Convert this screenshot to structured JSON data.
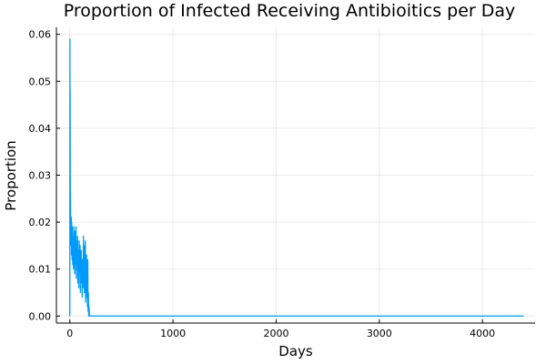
{
  "chart_data": {
    "type": "line",
    "title": "Proportion of Infected Receiving Antibioitics per Day",
    "xlabel": "Days",
    "ylabel": "Proportion",
    "xlim": [
      -130,
      4510
    ],
    "ylim": [
      -0.0015,
      0.0615
    ],
    "xticks": [
      0,
      1000,
      2000,
      3000,
      4000
    ],
    "xtick_labels": [
      "0",
      "1000",
      "2000",
      "3000",
      "4000"
    ],
    "yticks": [
      0.0,
      0.01,
      0.02,
      0.03,
      0.04,
      0.05,
      0.06
    ],
    "ytick_labels": [
      "0.00",
      "0.01",
      "0.02",
      "0.03",
      "0.04",
      "0.05",
      "0.06"
    ],
    "grid": true,
    "legend": false,
    "colors": {
      "series": "#009AFA",
      "axis": "#000000",
      "grid": "#EBEBEB"
    },
    "series": [
      {
        "x": [
          0,
          1,
          2,
          3,
          4,
          5,
          6,
          8,
          10,
          12,
          14,
          16,
          18,
          20,
          22,
          24,
          26,
          28,
          30,
          33,
          36,
          39,
          42,
          45,
          48,
          51,
          54,
          57,
          60,
          63,
          66,
          69,
          72,
          75,
          78,
          81,
          84,
          87,
          90,
          93,
          96,
          99,
          102,
          105,
          108,
          111,
          114,
          117,
          120,
          123,
          126,
          129,
          132,
          135,
          138,
          141,
          144,
          147,
          150,
          153,
          156,
          159,
          162,
          165,
          168,
          171,
          174,
          177,
          180,
          183,
          186,
          190,
          195,
          200,
          210,
          250,
          400,
          700,
          1000,
          1500,
          2000,
          2500,
          3000,
          3500,
          4000,
          4300,
          4400
        ],
        "y": [
          0.0,
          0.059,
          0.042,
          0.048,
          0.03,
          0.026,
          0.024,
          0.021,
          0.018,
          0.015,
          0.021,
          0.013,
          0.02,
          0.016,
          0.012,
          0.019,
          0.014,
          0.011,
          0.017,
          0.013,
          0.01,
          0.019,
          0.015,
          0.012,
          0.009,
          0.018,
          0.013,
          0.011,
          0.019,
          0.008,
          0.016,
          0.012,
          0.01,
          0.017,
          0.007,
          0.014,
          0.011,
          0.006,
          0.016,
          0.012,
          0.009,
          0.015,
          0.005,
          0.013,
          0.008,
          0.014,
          0.007,
          0.011,
          0.004,
          0.012,
          0.009,
          0.006,
          0.017,
          0.01,
          0.013,
          0.005,
          0.015,
          0.007,
          0.016,
          0.003,
          0.012,
          0.006,
          0.013,
          0.004,
          0.009,
          0.002,
          0.012,
          0.001,
          0.005,
          0.0,
          0.002,
          0.0,
          0.0,
          0.0,
          0.0,
          0.0,
          0.0,
          0.0,
          0.0,
          0.0,
          0.0,
          0.0,
          0.0,
          0.0,
          0.0,
          0.0,
          0.0
        ]
      }
    ]
  }
}
